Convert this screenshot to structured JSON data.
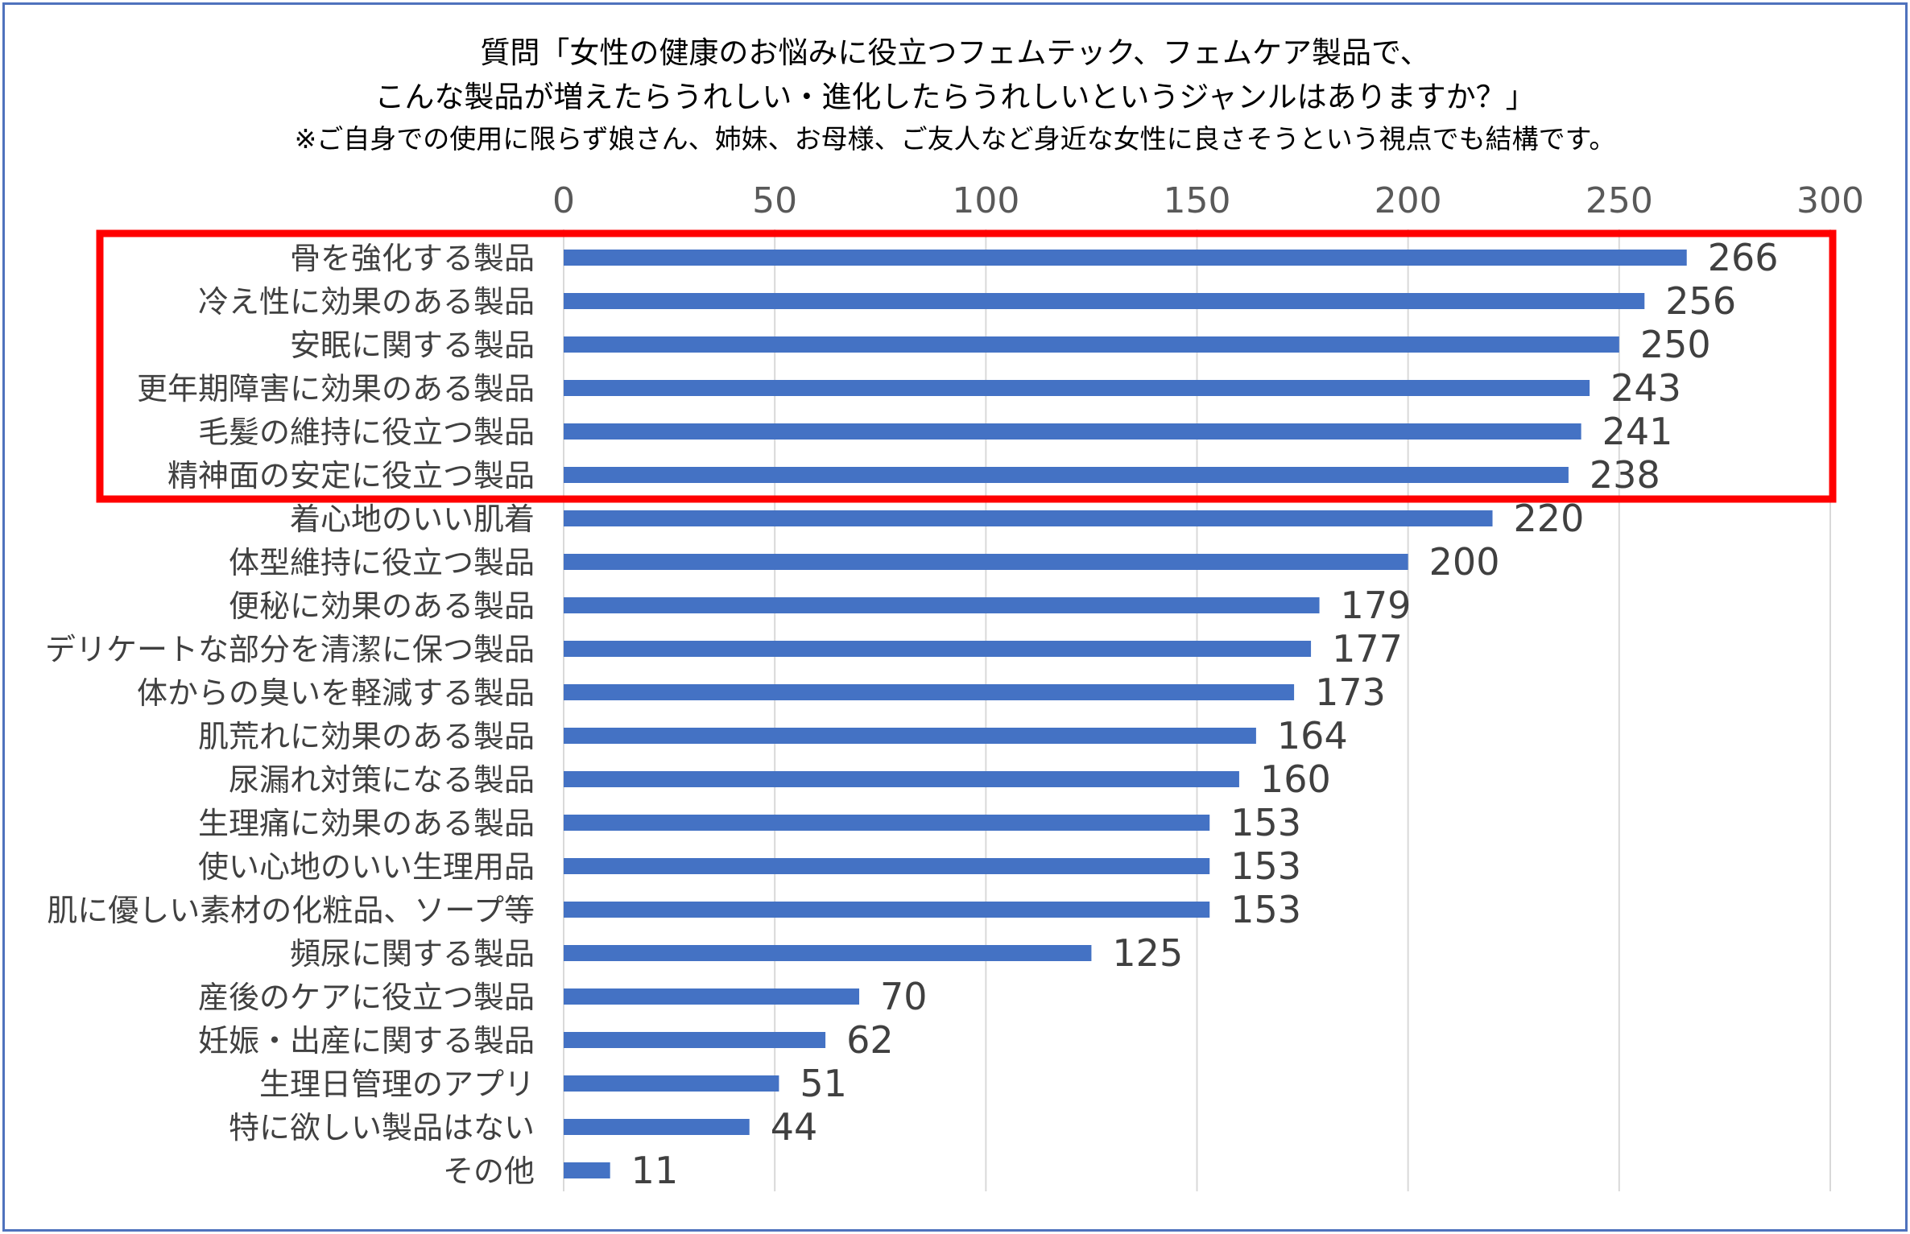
{
  "chart_data": {
    "type": "bar",
    "orientation": "horizontal",
    "title_lines": [
      "質問「女性の健康のお悩みに役立つフェムテック、フェムケア製品で、",
      "こんな製品が増えたらうれしい・進化したらうれしいというジャンルはありますか？」"
    ],
    "subtitle": "※ご自身での使用に限らず娘さん、姉妹、お母様、ご友人など身近な女性に良さそうという視点でも結構です。",
    "categories": [
      "骨を強化する製品",
      "冷え性に効果のある製品",
      "安眠に関する製品",
      "更年期障害に効果のある製品",
      "毛髪の維持に役立つ製品",
      "精神面の安定に役立つ製品",
      "着心地のいい肌着",
      "体型維持に役立つ製品",
      "便秘に効果のある製品",
      "デリケートな部分を清潔に保つ製品",
      "体からの臭いを軽減する製品",
      "肌荒れに効果のある製品",
      "尿漏れ対策になる製品",
      "生理痛に効果のある製品",
      "使い心地のいい生理用品",
      "肌に優しい素材の化粧品、ソープ等",
      "頻尿に関する製品",
      "産後のケアに役立つ製品",
      "妊娠・出産に関する製品",
      "生理日管理のアプリ",
      "特に欲しい製品はない",
      "その他"
    ],
    "values": [
      266,
      256,
      250,
      243,
      241,
      238,
      220,
      200,
      179,
      177,
      173,
      164,
      160,
      153,
      153,
      153,
      125,
      70,
      62,
      51,
      44,
      11
    ],
    "value_labels": [
      "266",
      "256",
      "250",
      "243",
      "241",
      "238",
      "220",
      "200",
      "179",
      "177",
      "173",
      "164",
      "160",
      "153",
      "153",
      "153",
      "125",
      "70",
      "62",
      "51",
      "44",
      "11"
    ],
    "xlim": [
      0,
      300
    ],
    "xticks": [
      0,
      50,
      100,
      150,
      200,
      250,
      300
    ],
    "xtick_labels": [
      "0",
      "50",
      "100",
      "150",
      "200",
      "250",
      "300"
    ],
    "axis_position": "top",
    "grid": "vertical",
    "legend": "none",
    "highlight": {
      "first_index": 0,
      "last_index": 5,
      "color": "#ff0000"
    },
    "colors": {
      "bar": "#4472c4",
      "grid": "#d9d9d9",
      "frame": "#4f72bd"
    }
  }
}
